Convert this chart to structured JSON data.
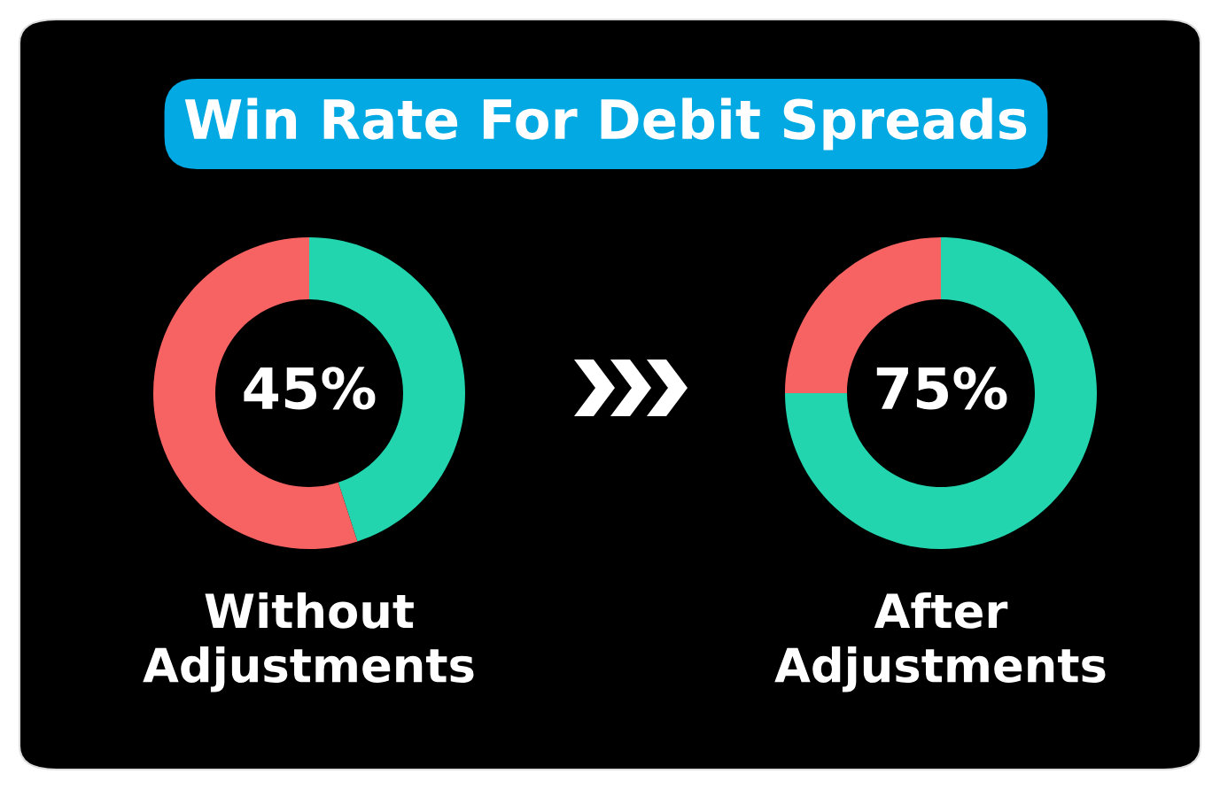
{
  "chart_data": [
    {
      "type": "donut",
      "title": "Win Rate For Debit Spreads",
      "categories": [
        null,
        null
      ],
      "values": [
        45,
        55
      ],
      "colors": [
        "#22d5ae",
        "#f76262"
      ],
      "value_labels": [
        "45%",
        null
      ],
      "xlabel": "Without\nAdjustments"
    },
    {
      "type": "donut",
      "categories": [
        null,
        null
      ],
      "values": [
        75,
        25
      ],
      "colors": [
        "#22d5ae",
        "#f76262"
      ],
      "value_labels": [
        "75%",
        null
      ],
      "xlabel": "After\nAdjustments"
    }
  ]
}
